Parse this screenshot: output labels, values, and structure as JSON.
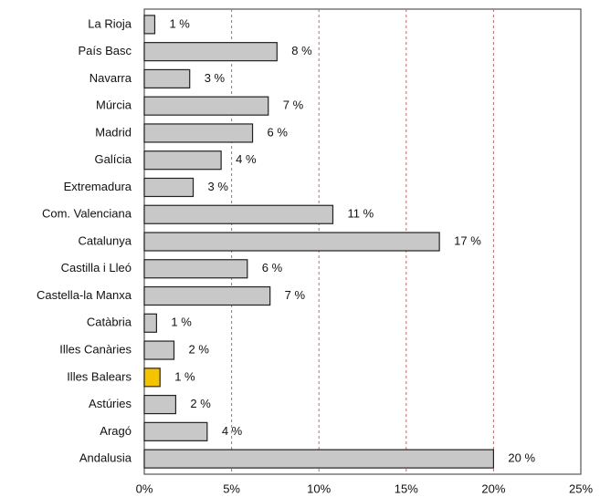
{
  "chart_data": {
    "type": "hbar",
    "categories": [
      "La Rioja",
      "País Basc",
      "Navarra",
      "Múrcia",
      "Madrid",
      "Galícia",
      "Extremadura",
      "Com. Valenciana",
      "Catalunya",
      "Castilla i Lleó",
      "Castella-la Manxa",
      "Catàbria",
      "Illes Canàries",
      "Illes Balears",
      "Astúries",
      "Aragó",
      "Andalusia"
    ],
    "values": [
      0.6,
      7.6,
      2.6,
      7.1,
      6.2,
      4.4,
      2.8,
      10.8,
      16.9,
      5.9,
      7.2,
      0.7,
      1.7,
      0.9,
      1.8,
      3.6,
      20.0
    ],
    "value_labels": [
      "1 %",
      "8 %",
      "3 %",
      "7 %",
      "6 %",
      "4 %",
      "3 %",
      "11 %",
      "17 %",
      "6 %",
      "7 %",
      "1 %",
      "2 %",
      "1 %",
      "2 %",
      "4 %",
      "20 %"
    ],
    "colors": [
      "#c8c8c8",
      "#c8c8c8",
      "#c8c8c8",
      "#c8c8c8",
      "#c8c8c8",
      "#c8c8c8",
      "#c8c8c8",
      "#c8c8c8",
      "#c8c8c8",
      "#c8c8c8",
      "#c8c8c8",
      "#c8c8c8",
      "#c8c8c8",
      "#f5c400",
      "#c8c8c8",
      "#c8c8c8",
      "#c8c8c8"
    ],
    "xlim": [
      0,
      25
    ],
    "xticks": [
      {
        "value": 0,
        "label": "0%"
      },
      {
        "value": 5,
        "label": "5%"
      },
      {
        "value": 10,
        "label": "10%"
      },
      {
        "value": 15,
        "label": "15%"
      },
      {
        "value": 20,
        "label": "20%"
      },
      {
        "value": 25,
        "label": "25%"
      }
    ],
    "grid": true
  }
}
